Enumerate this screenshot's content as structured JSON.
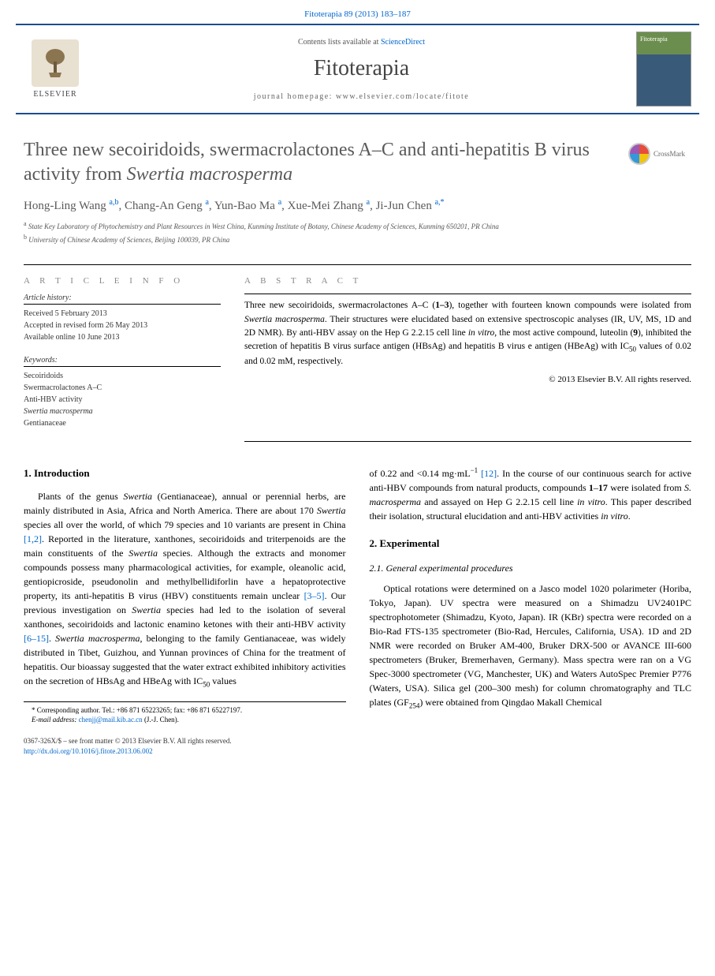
{
  "journal": {
    "citation": "Fitoterapia 89 (2013) 183–187",
    "contents_prefix": "Contents lists available at ",
    "contents_link": "ScienceDirect",
    "title": "Fitoterapia",
    "homepage_label": "journal homepage: ",
    "homepage_url": "www.elsevier.com/locate/fitote",
    "publisher_name": "ELSEVIER"
  },
  "crossmark_label": "CrossMark",
  "article": {
    "title_html": "Three new secoiridoids, swermacrolactones A–C and anti-hepatitis B virus activity from <em>Swertia macrosperma</em>",
    "authors_html": "Hong-Ling Wang <sup>a,b</sup>, Chang-An Geng <sup>a</sup>, Yun-Bao Ma <sup>a</sup>, Xue-Mei Zhang <sup>a</sup>, Ji-Jun Chen <sup>a,*</sup>",
    "affiliations": [
      {
        "label": "a",
        "text": "State Key Laboratory of Phytochemistry and Plant Resources in West China, Kunming Institute of Botany, Chinese Academy of Sciences, Kunming 650201, PR China"
      },
      {
        "label": "b",
        "text": "University of Chinese Academy of Sciences, Beijing 100039, PR China"
      }
    ]
  },
  "info": {
    "heading": "A R T I C L E   I N F O",
    "history_label": "Article history:",
    "history": [
      "Received 5 February 2013",
      "Accepted in revised form 26 May 2013",
      "Available online 10 June 2013"
    ],
    "keywords_label": "Keywords:",
    "keywords": [
      "Secoiridoids",
      "Swermacrolactones A–C",
      "Anti-HBV activity",
      "Swertia macrosperma",
      "Gentianaceae"
    ]
  },
  "abstract": {
    "heading": "A B S T R A C T",
    "text_html": "Three new secoiridoids, swermacrolactones A–C (<b>1–3</b>), together with fourteen known compounds were isolated from <em>Swertia macrosperma</em>. Their structures were elucidated based on extensive spectroscopic analyses (IR, UV, MS, 1D and 2D NMR). By anti-HBV assay on the Hep G 2.2.15 cell line <em>in vitro</em>, the most active compound, luteolin (<b>9</b>), inhibited the secretion of hepatitis B virus surface antigen (HBsAg) and hepatitis B virus e antigen (HBeAg) with IC<sub>50</sub> values of 0.02 and 0.02 mM, respectively.",
    "copyright": "© 2013 Elsevier B.V. All rights reserved."
  },
  "sections": {
    "intro_heading": "1. Introduction",
    "intro_html": "Plants of the genus <em>Swertia</em> (Gentianaceae), annual or perennial herbs, are mainly distributed in Asia, Africa and North America. There are about 170 <em>Swertia</em> species all over the world, of which 79 species and 10 variants are present in China <a class=\"ref\">[1,2]</a>. Reported in the literature, xanthones, secoiridoids and triterpenoids are the main constituents of the <em>Swertia</em> species. Although the extracts and monomer compounds possess many pharmacological activities, for example, oleanolic acid, gentiopicroside, pseudonolin and methylbellidiforlin have a hepatoprotective property, its anti-hepatitis B virus (HBV) constituents remain unclear <a class=\"ref\">[3–5]</a>. Our previous investigation on <em>Swertia</em> species had led to the isolation of several xanthones, secoiridoids and lactonic enamino ketones with their anti-HBV activity <a class=\"ref\">[6–15]</a>. <em>Swertia macrosperma</em>, belonging to the family Gentianaceae, was widely distributed in Tibet, Guizhou, and Yunnan provinces of China for the treatment of hepatitis. Our bioassay suggested that the water extract exhibited inhibitory activities on the secretion of HBsAg and HBeAg with IC<sub>50</sub> values",
    "intro_cont_html": "of 0.22 and &lt;0.14 mg·mL<sup>−1</sup> <a class=\"ref\">[12]</a>. In the course of our continuous search for active anti-HBV compounds from natural products, compounds <b>1</b>–<b>17</b> were isolated from <em>S. macrosperma</em> and assayed on Hep G 2.2.15 cell line <em>in vitro</em>. This paper described their isolation, structural elucidation and anti-HBV activities <em>in vitro</em>.",
    "exp_heading": "2. Experimental",
    "exp_sub_heading": "2.1. General experimental procedures",
    "exp_html": "Optical rotations were determined on a Jasco model 1020 polarimeter (Horiba, Tokyo, Japan). UV spectra were measured on a Shimadzu UV2401PC spectrophotometer (Shimadzu, Kyoto, Japan). IR (KBr) spectra were recorded on a Bio-Rad FTS-135 spectrometer (Bio-Rad, Hercules, California, USA). 1D and 2D NMR were recorded on Bruker AM-400, Bruker DRX-500 or AVANCE III-600 spectrometers (Bruker, Bremerhaven, Germany). Mass spectra were ran on a VG Spec-3000 spectrometer (VG, Manchester, UK) and Waters AutoSpec Premier P776 (Waters, USA). Silica gel (200–300 mesh) for column chromatography and TLC plates (GF<sub>254</sub>) were obtained from Qingdao Makall Chemical"
  },
  "footnotes": {
    "corresponding": "* Corresponding author. Tel.: +86 871 65223265; fax: +86 871 65227197.",
    "email_label": "E-mail address:",
    "email": "chenjj@mail.kib.ac.cn",
    "email_name": "(J.-J. Chen)."
  },
  "footer": {
    "issn": "0367-326X/$ – see front matter © 2013 Elsevier B.V. All rights reserved.",
    "doi": "http://dx.doi.org/10.1016/j.fitote.2013.06.002"
  },
  "colors": {
    "link": "#0066cc",
    "rule": "#1a4d8f",
    "title_gray": "#5a5a5a"
  }
}
